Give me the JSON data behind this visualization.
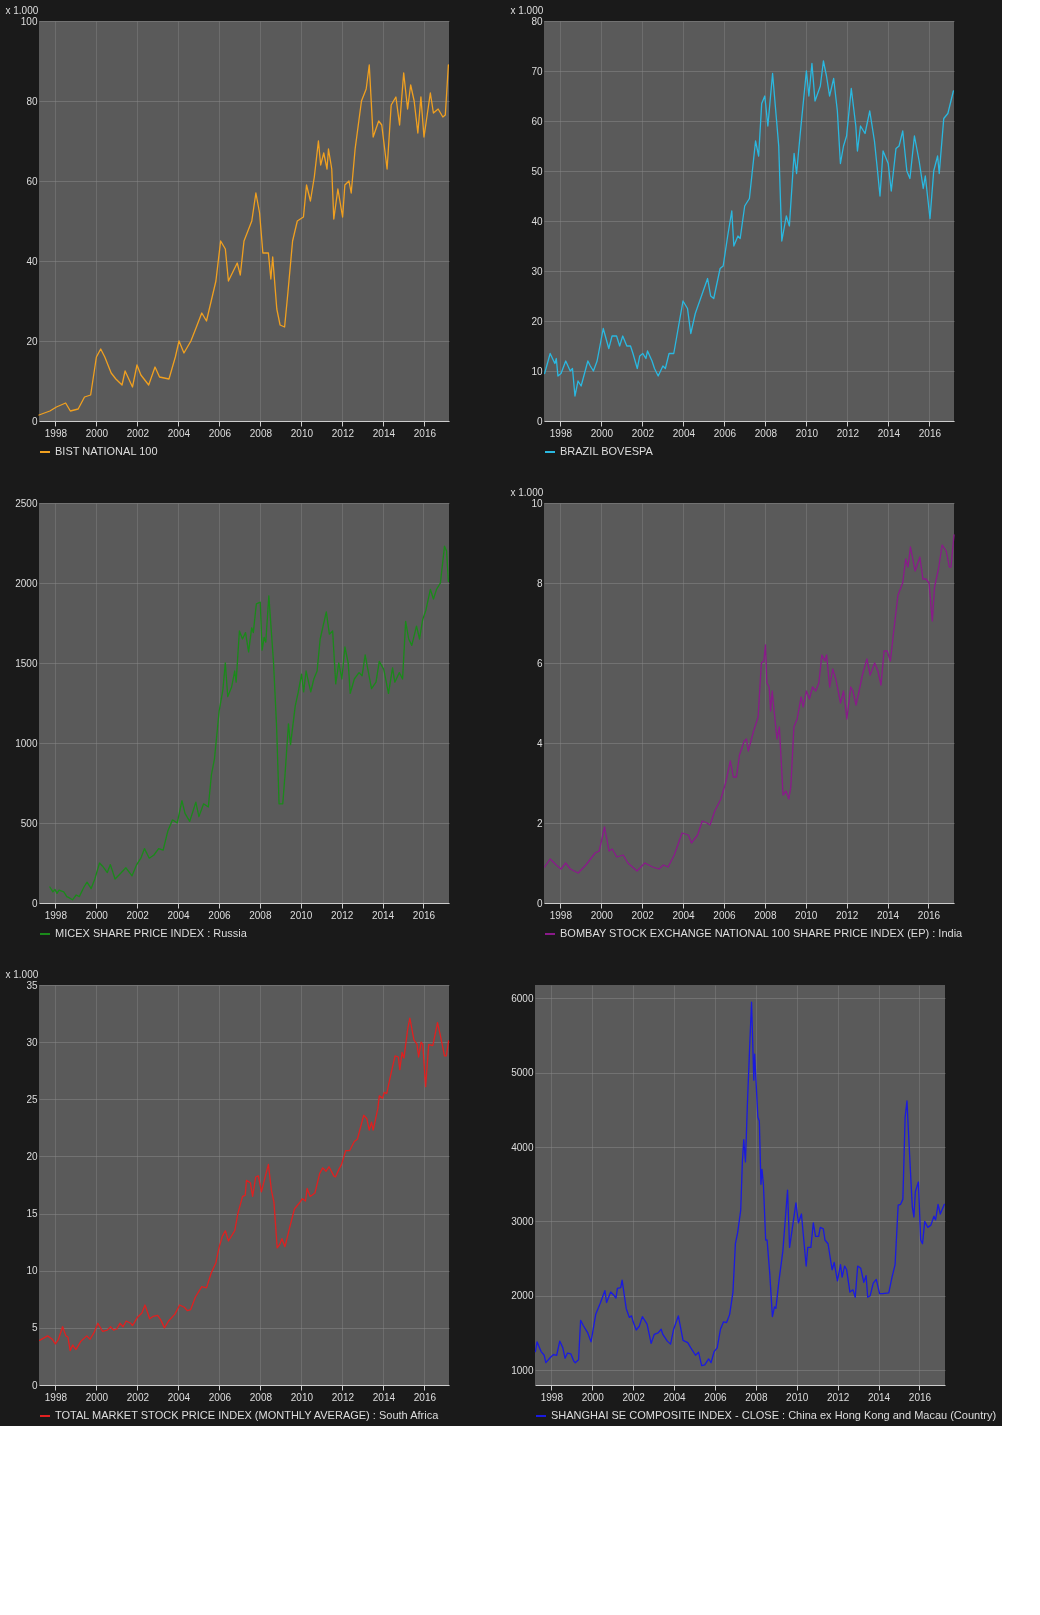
{
  "chart_data": [
    {
      "type": "line",
      "ylabel": "x 1.000",
      "xlim": [
        1997.2,
        2017.2
      ],
      "xticks": [
        1998,
        2000,
        2002,
        2004,
        2006,
        2008,
        2010,
        2012,
        2014,
        2016
      ],
      "ylim": [
        0,
        100
      ],
      "yticks": [
        0,
        20,
        40,
        60,
        80,
        100
      ],
      "grid": true,
      "legend": "bottom",
      "series": [
        {
          "name": "BIST NATIONAL 100",
          "color": "#f0a020",
          "x": [
            1997.2,
            1997.73,
            1998.05,
            1998.5,
            1998.73,
            1999.11,
            1999.42,
            1999.72,
            2000.0,
            2000.21,
            2000.41,
            2000.72,
            2000.95,
            2001.25,
            2001.4,
            2001.76,
            2001.98,
            2002.17,
            2002.55,
            2002.86,
            2003.08,
            2003.54,
            2003.85,
            2004.03,
            2004.27,
            2004.61,
            2004.84,
            2005.14,
            2005.37,
            2005.83,
            2006.06,
            2006.29,
            2006.44,
            2006.87,
            2007.02,
            2007.2,
            2007.58,
            2007.78,
            2007.96,
            2008.12,
            2008.39,
            2008.51,
            2008.6,
            2008.8,
            2008.96,
            2009.18,
            2009.34,
            2009.57,
            2009.8,
            2010.1,
            2010.25,
            2010.44,
            2010.63,
            2010.83,
            2010.94,
            2011.09,
            2011.25,
            2011.32,
            2011.48,
            2011.58,
            2011.78,
            2012.01,
            2012.12,
            2012.32,
            2012.43,
            2012.62,
            2012.93,
            2013.16,
            2013.31,
            2013.5,
            2013.77,
            2013.92,
            2014.18,
            2014.38,
            2014.61,
            2014.79,
            2014.99,
            2015.18,
            2015.33,
            2015.5,
            2015.68,
            2015.83,
            2015.98,
            2016.29,
            2016.44,
            2016.67,
            2016.9,
            2017.02,
            2017.17
          ],
          "values": [
            1.5,
            2.5,
            3.5,
            4.5,
            2.5,
            3,
            6,
            6.5,
            16,
            18,
            16,
            12,
            10.5,
            9,
            12.5,
            8.5,
            14,
            11.5,
            9,
            13.5,
            11,
            10.5,
            16,
            20,
            17,
            20,
            23,
            27,
            25,
            35,
            45,
            43,
            35,
            39.5,
            36.5,
            45,
            50,
            57,
            52,
            42,
            42,
            35.5,
            41,
            28,
            24,
            23.5,
            32,
            45,
            50,
            51,
            59,
            55,
            61,
            70,
            64,
            67,
            63,
            68,
            63,
            50.5,
            58,
            51,
            59,
            60,
            57,
            68,
            80,
            83,
            89,
            71,
            75,
            74,
            63,
            79,
            81,
            74,
            87,
            78,
            84,
            80,
            72,
            81,
            71,
            82,
            77,
            78,
            76,
            76.5,
            89
          ]
        }
      ]
    },
    {
      "type": "line",
      "ylabel": "x 1.000",
      "xlim": [
        1997.2,
        2017.2
      ],
      "xticks": [
        1998,
        2000,
        2002,
        2004,
        2006,
        2008,
        2010,
        2012,
        2014,
        2016
      ],
      "ylim": [
        0,
        80
      ],
      "yticks": [
        0,
        10,
        20,
        30,
        40,
        50,
        60,
        70,
        80
      ],
      "grid": true,
      "legend": "bottom",
      "series": [
        {
          "name": "BRAZIL BOVESPA",
          "color": "#2ab8e0",
          "x": [
            1997.23,
            1997.5,
            1997.73,
            1997.8,
            1997.88,
            1998.03,
            1998.26,
            1998.48,
            1998.59,
            1998.71,
            1998.86,
            1999.01,
            1999.34,
            1999.46,
            1999.61,
            1999.79,
            2000.09,
            2000.36,
            2000.52,
            2000.74,
            2000.89,
            2001.04,
            2001.24,
            2001.42,
            2001.54,
            2001.75,
            2001.87,
            2002.02,
            2002.17,
            2002.25,
            2002.47,
            2002.59,
            2002.77,
            2003.0,
            2003.12,
            2003.3,
            2003.53,
            2003.68,
            2003.98,
            2004.2,
            2004.36,
            2004.58,
            2004.88,
            2005.18,
            2005.33,
            2005.48,
            2005.79,
            2005.94,
            2006.16,
            2006.36,
            2006.46,
            2006.66,
            2006.77,
            2006.99,
            2007.22,
            2007.52,
            2007.67,
            2007.82,
            2007.97,
            2008.12,
            2008.35,
            2008.65,
            2008.8,
            2009.02,
            2009.17,
            2009.4,
            2009.52,
            2009.7,
            2010.0,
            2010.12,
            2010.27,
            2010.42,
            2010.68,
            2010.83,
            2010.98,
            2011.13,
            2011.33,
            2011.51,
            2011.66,
            2011.81,
            2011.96,
            2012.19,
            2012.41,
            2012.49,
            2012.64,
            2012.86,
            2013.09,
            2013.32,
            2013.47,
            2013.59,
            2013.74,
            2013.99,
            2014.14,
            2014.37,
            2014.52,
            2014.7,
            2014.9,
            2015.05,
            2015.27,
            2015.5,
            2015.7,
            2015.8,
            2016.03,
            2016.21,
            2016.4,
            2016.48,
            2016.7,
            2016.9,
            2017.17
          ],
          "values": [
            9.5,
            13.5,
            11.5,
            12.5,
            9,
            9.5,
            12,
            10,
            10.5,
            5,
            8,
            7,
            12,
            11,
            10,
            12,
            18.5,
            14.5,
            17,
            17,
            15,
            17,
            15,
            15,
            13.5,
            10.5,
            13,
            13.5,
            12.5,
            14,
            12,
            10.5,
            9,
            11,
            10.5,
            13.5,
            13.5,
            17,
            24,
            22.5,
            17.5,
            21.5,
            25,
            28.5,
            25,
            24.5,
            30.5,
            31,
            37,
            42,
            35,
            37,
            36.5,
            43,
            44.5,
            56,
            53,
            63.5,
            65,
            59,
            69.5,
            55,
            36,
            41,
            39,
            53.5,
            49.5,
            57.5,
            70,
            65,
            71.5,
            64,
            67,
            72,
            69,
            65,
            68.5,
            62,
            51.5,
            55,
            57,
            66.5,
            59,
            54,
            59,
            57.5,
            62,
            56,
            50,
            45,
            54,
            51.5,
            46,
            54.5,
            55,
            58,
            50,
            48.5,
            57,
            52,
            46.5,
            49,
            40.5,
            50,
            53,
            49.5,
            60.5,
            61.5,
            66
          ]
        }
      ]
    },
    {
      "type": "line",
      "xlim": [
        1997.2,
        2017.25
      ],
      "xticks": [
        1998,
        2000,
        2002,
        2004,
        2006,
        2008,
        2010,
        2012,
        2014,
        2016
      ],
      "ylim": [
        0,
        2500
      ],
      "yticks": [
        0,
        500,
        1000,
        1500,
        2000,
        2500
      ],
      "grid": true,
      "legend": "bottom",
      "series": [
        {
          "name": "MICEX SHARE PRICE INDEX : Russia",
          "color": "#1a8a1a",
          "x": [
            1997.73,
            1997.88,
            1997.98,
            1998.08,
            1998.18,
            1998.41,
            1998.56,
            1998.71,
            1998.84,
            1999.02,
            1999.17,
            1999.4,
            1999.55,
            1999.75,
            1999.93,
            2000.16,
            2000.31,
            2000.54,
            2000.69,
            2000.92,
            2001.15,
            2001.45,
            2001.75,
            2001.98,
            2002.18,
            2002.36,
            2002.59,
            2002.82,
            2003.05,
            2003.27,
            2003.5,
            2003.73,
            2003.96,
            2004.19,
            2004.34,
            2004.57,
            2004.87,
            2005.02,
            2005.25,
            2005.48,
            2005.63,
            2005.78,
            2006.01,
            2006.19,
            2006.31,
            2006.43,
            2006.62,
            2006.77,
            2006.84,
            2007.0,
            2007.15,
            2007.3,
            2007.45,
            2007.6,
            2007.68,
            2007.83,
            2008.02,
            2008.11,
            2008.21,
            2008.29,
            2008.44,
            2008.67,
            2008.82,
            2008.94,
            2009.12,
            2009.23,
            2009.4,
            2009.5,
            2009.73,
            2009.88,
            2010.04,
            2010.14,
            2010.26,
            2010.49,
            2010.64,
            2010.8,
            2010.95,
            2011.25,
            2011.4,
            2011.56,
            2011.71,
            2011.86,
            2012.01,
            2012.16,
            2012.32,
            2012.42,
            2012.62,
            2012.85,
            2013.0,
            2013.15,
            2013.46,
            2013.68,
            2013.84,
            2014.06,
            2014.29,
            2014.49,
            2014.6,
            2014.82,
            2014.98,
            2015.13,
            2015.28,
            2015.43,
            2015.66,
            2015.81,
            2015.96,
            2016.12,
            2016.34,
            2016.49,
            2016.64,
            2016.83,
            2017.03,
            2017.13,
            2017.22
          ],
          "values": [
            100,
            70,
            85,
            60,
            80,
            70,
            40,
            30,
            20,
            50,
            40,
            100,
            130,
            90,
            150,
            250,
            230,
            190,
            240,
            150,
            180,
            220,
            170,
            240,
            280,
            340,
            280,
            300,
            340,
            330,
            450,
            520,
            500,
            640,
            560,
            510,
            630,
            540,
            620,
            600,
            800,
            900,
            1200,
            1330,
            1500,
            1290,
            1350,
            1450,
            1380,
            1700,
            1650,
            1690,
            1570,
            1720,
            1690,
            1870,
            1880,
            1580,
            1660,
            1630,
            1920,
            1500,
            1100,
            620,
            620,
            800,
            1120,
            990,
            1230,
            1320,
            1430,
            1320,
            1450,
            1320,
            1400,
            1450,
            1650,
            1820,
            1680,
            1700,
            1370,
            1500,
            1400,
            1600,
            1500,
            1310,
            1400,
            1440,
            1420,
            1550,
            1340,
            1380,
            1510,
            1460,
            1310,
            1470,
            1380,
            1440,
            1400,
            1760,
            1650,
            1610,
            1730,
            1650,
            1770,
            1830,
            1960,
            1900,
            1960,
            2000,
            2230,
            2200,
            2010
          ]
        }
      ]
    },
    {
      "type": "line",
      "ylabel": "x 1.000",
      "xlim": [
        1997.2,
        2017.25
      ],
      "xticks": [
        1998,
        2000,
        2002,
        2004,
        2006,
        2008,
        2010,
        2012,
        2014,
        2016
      ],
      "ylim": [
        0,
        10
      ],
      "yticks": [
        0,
        2,
        4,
        6,
        8,
        10
      ],
      "grid": true,
      "legend": "bottom",
      "series": [
        {
          "name": "BOMBAY STOCK EXCHANGE NATIONAL 100 SHARE PRICE INDEX (EP) : India",
          "color": "#8a1a8a",
          "x": [
            1997.23,
            1997.5,
            1997.8,
            1998.03,
            1998.26,
            1998.49,
            1998.87,
            1999.25,
            1999.7,
            1999.9,
            2000.16,
            2000.38,
            2000.54,
            2000.76,
            2001.07,
            2001.3,
            2001.75,
            2002.13,
            2002.51,
            2002.82,
            2003.04,
            2003.27,
            2003.57,
            2003.95,
            2004.26,
            2004.41,
            2004.71,
            2004.94,
            2005.17,
            2005.32,
            2005.55,
            2005.85,
            2006.08,
            2006.31,
            2006.46,
            2006.61,
            2006.76,
            2006.99,
            2007.1,
            2007.19,
            2007.45,
            2007.67,
            2007.83,
            2007.95,
            2008.03,
            2008.1,
            2008.21,
            2008.28,
            2008.36,
            2008.59,
            2008.71,
            2008.89,
            2009.04,
            2009.17,
            2009.27,
            2009.42,
            2009.58,
            2009.77,
            2009.88,
            2010.03,
            2010.18,
            2010.33,
            2010.49,
            2010.64,
            2010.79,
            2010.94,
            2011.02,
            2011.17,
            2011.32,
            2011.47,
            2011.7,
            2011.85,
            2012.01,
            2012.2,
            2012.31,
            2012.46,
            2012.61,
            2012.77,
            2012.99,
            2013.15,
            2013.37,
            2013.53,
            2013.68,
            2013.83,
            2013.98,
            2014.14,
            2014.28,
            2014.51,
            2014.74,
            2014.89,
            2015.0,
            2015.12,
            2015.35,
            2015.58,
            2015.73,
            2015.88,
            2016.03,
            2016.19,
            2016.3,
            2016.49,
            2016.67,
            2016.87,
            2017.02,
            2017.1,
            2017.25
          ],
          "values": [
            0.9,
            1.1,
            0.95,
            0.85,
            1.0,
            0.85,
            0.75,
            0.95,
            1.25,
            1.3,
            1.9,
            1.3,
            1.35,
            1.15,
            1.2,
            1.0,
            0.8,
            1.0,
            0.9,
            0.85,
            0.95,
            0.9,
            1.2,
            1.75,
            1.7,
            1.5,
            1.7,
            2.05,
            2.0,
            1.95,
            2.3,
            2.6,
            3.0,
            3.55,
            3.15,
            3.15,
            3.7,
            4.05,
            4.1,
            3.8,
            4.3,
            4.65,
            6.0,
            6.05,
            6.45,
            5.5,
            5.4,
            4.8,
            5.3,
            4.1,
            4.4,
            2.7,
            2.8,
            2.6,
            2.9,
            4.4,
            4.6,
            5.15,
            4.9,
            5.3,
            5.1,
            5.4,
            5.3,
            5.5,
            6.2,
            6.05,
            6.2,
            5.4,
            5.85,
            5.6,
            5.0,
            5.3,
            4.6,
            5.4,
            5.3,
            4.95,
            5.3,
            5.7,
            6.1,
            5.7,
            6.0,
            5.8,
            5.45,
            6.3,
            6.3,
            6.05,
            6.7,
            7.7,
            8.0,
            8.6,
            8.4,
            8.9,
            8.3,
            8.65,
            8.1,
            8.1,
            8.0,
            7.05,
            7.9,
            8.35,
            8.95,
            8.8,
            8.4,
            8.4,
            9.2
          ]
        }
      ]
    },
    {
      "type": "line",
      "ylabel": "x 1.000",
      "xlim": [
        1997.2,
        2017.2
      ],
      "xticks": [
        1998,
        2000,
        2002,
        2004,
        2006,
        2008,
        2010,
        2012,
        2014,
        2016
      ],
      "ylim": [
        0,
        35
      ],
      "yticks": [
        0,
        5,
        10,
        15,
        20,
        25,
        30,
        35
      ],
      "grid": true,
      "legend": "bottom",
      "series": [
        {
          "name": "TOTAL MARKET STOCK PRICE INDEX (MONTHLY AVERAGE) : South Africa",
          "color": "#e02020",
          "x": [
            1997.23,
            1997.62,
            1997.85,
            1998.0,
            1998.15,
            1998.35,
            1998.51,
            1998.61,
            1998.72,
            1998.84,
            1999.0,
            1999.23,
            1999.53,
            1999.69,
            1999.89,
            2000.07,
            2000.3,
            2000.53,
            2000.69,
            2000.84,
            2000.99,
            2001.15,
            2001.3,
            2001.45,
            2001.68,
            2001.76,
            2001.99,
            2002.22,
            2002.37,
            2002.6,
            2002.76,
            2002.99,
            2003.14,
            2003.32,
            2003.52,
            2003.83,
            2004.06,
            2004.29,
            2004.44,
            2004.6,
            2004.83,
            2005.14,
            2005.37,
            2005.6,
            2005.83,
            2005.98,
            2006.14,
            2006.29,
            2006.44,
            2006.75,
            2006.9,
            2007.13,
            2007.26,
            2007.32,
            2007.51,
            2007.62,
            2007.77,
            2007.9,
            2008.05,
            2008.2,
            2008.39,
            2008.54,
            2008.66,
            2008.82,
            2008.94,
            2009.05,
            2009.2,
            2009.43,
            2009.66,
            2009.89,
            2010.05,
            2010.2,
            2010.28,
            2010.43,
            2010.66,
            2010.89,
            2011.04,
            2011.2,
            2011.35,
            2011.58,
            2011.66,
            2011.81,
            2011.96,
            2012.16,
            2012.35,
            2012.58,
            2012.73,
            2013.04,
            2013.19,
            2013.31,
            2013.42,
            2013.5,
            2013.73,
            2013.8,
            2013.96,
            2014.04,
            2014.16,
            2014.34,
            2014.57,
            2014.73,
            2014.8,
            2014.91,
            2015.0,
            2015.19,
            2015.29,
            2015.49,
            2015.64,
            2015.72,
            2015.84,
            2015.92,
            2016.06,
            2016.21,
            2016.41,
            2016.64,
            2016.8,
            2016.98,
            2017.07,
            2017.18
          ],
          "values": [
            3.9,
            4.3,
            4.0,
            3.6,
            4.0,
            5.1,
            4.3,
            4.2,
            3.0,
            3.5,
            3.1,
            3.8,
            4.3,
            4.0,
            4.6,
            5.4,
            4.7,
            4.8,
            5.1,
            4.8,
            4.9,
            5.4,
            5.1,
            5.6,
            5.4,
            5.2,
            5.9,
            6.3,
            7.0,
            5.8,
            6.0,
            6.1,
            5.7,
            5.0,
            5.6,
            6.2,
            7.0,
            6.8,
            6.5,
            6.6,
            7.7,
            8.6,
            8.5,
            9.8,
            10.7,
            12.0,
            13.0,
            13.5,
            12.6,
            13.5,
            15.0,
            16.5,
            16.6,
            17.9,
            17.7,
            16.5,
            18.2,
            18.3,
            16.9,
            18.0,
            19.3,
            17.0,
            16.0,
            12.0,
            12.3,
            12.8,
            12.1,
            13.8,
            15.4,
            15.9,
            16.3,
            16.1,
            17.2,
            16.5,
            16.8,
            18.5,
            19.0,
            18.7,
            19.1,
            18.3,
            18.2,
            18.8,
            19.3,
            20.5,
            20.5,
            21.3,
            21.5,
            23.6,
            23.3,
            22.3,
            23.0,
            22.3,
            24.2,
            25.3,
            25.1,
            25.6,
            25.5,
            27.0,
            28.8,
            28.7,
            27.6,
            29.1,
            28.6,
            31.2,
            32.1,
            30.2,
            29.8,
            28.7,
            30.0,
            29.8,
            26.1,
            29.8,
            29.7,
            31.7,
            30.4,
            28.8,
            28.8,
            30.1
          ]
        }
      ]
    },
    {
      "type": "line",
      "xlim": [
        1997.2,
        2017.25
      ],
      "xticks": [
        1998,
        2000,
        2002,
        2004,
        2006,
        2008,
        2010,
        2012,
        2014,
        2016
      ],
      "ylim": [
        800,
        6180
      ],
      "yticks": [
        1000,
        2000,
        3000,
        4000,
        5000,
        6000
      ],
      "grid": true,
      "legend": "bottom",
      "series": [
        {
          "name": "SHANGHAI SE COMPOSITE INDEX - CLOSE : China ex Hong Kong and Macau (Country)",
          "color": "#1a1ae0",
          "x": [
            1997.22,
            1997.3,
            1997.5,
            1997.65,
            1997.73,
            1997.95,
            1998.11,
            1998.26,
            1998.41,
            1998.56,
            1998.67,
            1998.79,
            1998.95,
            1999.1,
            1999.17,
            1999.33,
            1999.43,
            1999.56,
            1999.78,
            1999.94,
            2000.17,
            2000.39,
            2000.62,
            2000.7,
            2000.9,
            2001.08,
            2001.16,
            2001.23,
            2001.39,
            2001.46,
            2001.66,
            2001.81,
            2001.92,
            2002.0,
            2002.15,
            2002.3,
            2002.45,
            2002.68,
            2002.88,
            2003.03,
            2003.22,
            2003.37,
            2003.45,
            2003.67,
            2003.83,
            2003.98,
            2004.21,
            2004.44,
            2004.67,
            2004.82,
            2005.05,
            2005.2,
            2005.35,
            2005.5,
            2005.69,
            2005.81,
            2005.96,
            2006.11,
            2006.27,
            2006.42,
            2006.57,
            2006.72,
            2006.88,
            2007.0,
            2007.11,
            2007.26,
            2007.34,
            2007.41,
            2007.49,
            2007.59,
            2007.69,
            2007.79,
            2007.9,
            2007.94,
            2008.1,
            2008.17,
            2008.25,
            2008.3,
            2008.37,
            2008.48,
            2008.55,
            2008.68,
            2008.81,
            2008.91,
            2008.98,
            2009.13,
            2009.32,
            2009.55,
            2009.65,
            2009.78,
            2009.96,
            2010.08,
            2010.23,
            2010.46,
            2010.54,
            2010.69,
            2010.81,
            2010.92,
            2011.07,
            2011.15,
            2011.3,
            2011.38,
            2011.53,
            2011.73,
            2011.83,
            2011.99,
            2012.14,
            2012.22,
            2012.34,
            2012.44,
            2012.6,
            2012.75,
            2012.86,
            2012.98,
            2013.13,
            2013.28,
            2013.39,
            2013.47,
            2013.59,
            2013.74,
            2013.89,
            2014.05,
            2014.2,
            2014.5,
            2014.66,
            2014.81,
            2014.96,
            2015.08,
            2015.19,
            2015.3,
            2015.39,
            2015.5,
            2015.65,
            2015.73,
            2015.8,
            2015.95,
            2016.06,
            2016.15,
            2016.26,
            2016.41,
            2016.56,
            2016.71,
            2016.79,
            2016.91,
            2017.02,
            2017.22
          ],
          "values": [
            1250,
            1380,
            1250,
            1200,
            1100,
            1170,
            1210,
            1200,
            1390,
            1300,
            1160,
            1230,
            1220,
            1120,
            1100,
            1140,
            1670,
            1600,
            1500,
            1380,
            1750,
            1900,
            2070,
            1910,
            2050,
            2000,
            1970,
            2100,
            2110,
            2210,
            1830,
            1710,
            1730,
            1650,
            1540,
            1590,
            1720,
            1620,
            1360,
            1480,
            1500,
            1550,
            1480,
            1390,
            1350,
            1550,
            1730,
            1400,
            1370,
            1300,
            1200,
            1240,
            1060,
            1070,
            1150,
            1100,
            1250,
            1300,
            1550,
            1650,
            1640,
            1750,
            2050,
            2700,
            2850,
            3150,
            3800,
            4100,
            3800,
            4600,
            5300,
            5950,
            4900,
            5250,
            4400,
            4350,
            3500,
            3700,
            3500,
            2750,
            2750,
            2300,
            1720,
            1850,
            1830,
            2200,
            2600,
            3420,
            2650,
            2900,
            3250,
            2980,
            3100,
            2400,
            2650,
            2650,
            2980,
            2800,
            2800,
            2920,
            2900,
            2750,
            2700,
            2350,
            2450,
            2200,
            2420,
            2250,
            2400,
            2350,
            2050,
            2080,
            1980,
            2400,
            2370,
            2180,
            2270,
            1980,
            2000,
            2170,
            2220,
            2030,
            2030,
            2040,
            2250,
            2420,
            3220,
            3230,
            3300,
            4400,
            4620,
            4000,
            3200,
            3060,
            3400,
            3530,
            2750,
            2700,
            3000,
            2920,
            2950,
            3070,
            3020,
            3230,
            3100,
            3230
          ]
        }
      ]
    }
  ]
}
